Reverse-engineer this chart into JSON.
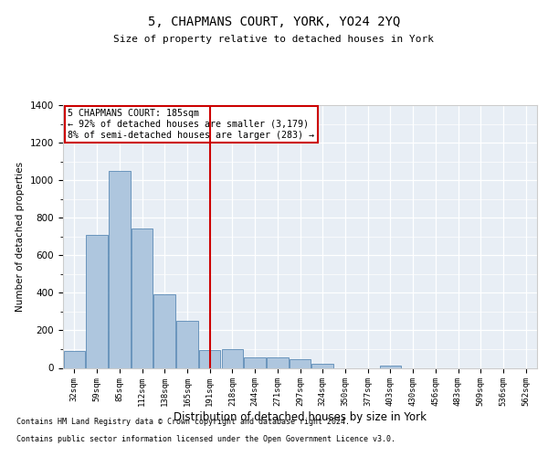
{
  "title": "5, CHAPMANS COURT, YORK, YO24 2YQ",
  "subtitle": "Size of property relative to detached houses in York",
  "xlabel": "Distribution of detached houses by size in York",
  "ylabel": "Number of detached properties",
  "footnote1": "Contains HM Land Registry data © Crown copyright and database right 2024.",
  "footnote2": "Contains public sector information licensed under the Open Government Licence v3.0.",
  "annotation_line1": "5 CHAPMANS COURT: 185sqm",
  "annotation_line2": "← 92% of detached houses are smaller (3,179)",
  "annotation_line3": "8% of semi-detached houses are larger (283) →",
  "bar_color": "#aec6de",
  "bar_edge_color": "#5a8ab5",
  "highlight_color": "#cc0000",
  "background_color": "#e8eef5",
  "categories": [
    "32sqm",
    "59sqm",
    "85sqm",
    "112sqm",
    "138sqm",
    "165sqm",
    "191sqm",
    "218sqm",
    "244sqm",
    "271sqm",
    "297sqm",
    "324sqm",
    "350sqm",
    "377sqm",
    "403sqm",
    "430sqm",
    "456sqm",
    "483sqm",
    "509sqm",
    "536sqm",
    "562sqm"
  ],
  "values": [
    90,
    710,
    1050,
    745,
    390,
    250,
    95,
    100,
    55,
    55,
    45,
    20,
    0,
    0,
    10,
    0,
    0,
    0,
    0,
    0,
    0
  ],
  "highlight_index": 6,
  "ylim": [
    0,
    1400
  ],
  "yticks": [
    0,
    200,
    400,
    600,
    800,
    1000,
    1200,
    1400
  ]
}
